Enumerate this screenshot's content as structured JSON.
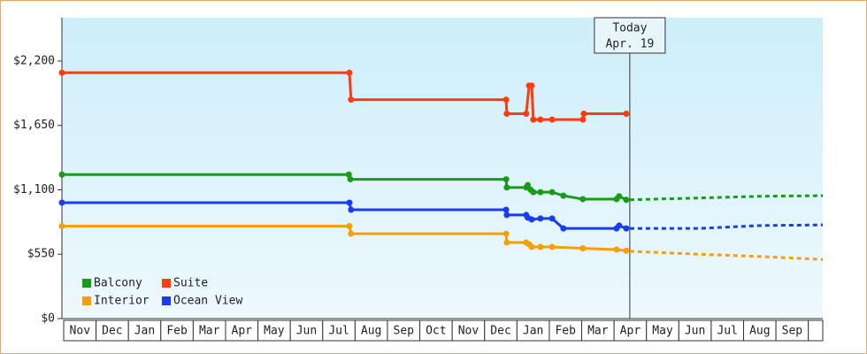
{
  "chart_data": {
    "type": "line",
    "categories": [
      "Nov",
      "Dec",
      "Jan",
      "Feb",
      "Mar",
      "Apr",
      "May",
      "Jun",
      "Jul",
      "Aug",
      "Sep",
      "Oct",
      "Nov",
      "Dec",
      "Jan",
      "Feb",
      "Mar",
      "Apr",
      "May",
      "Jun",
      "Jul",
      "Aug",
      "Sep"
    ],
    "xlim": [
      0,
      23.5
    ],
    "ylim": [
      0,
      2570
    ],
    "yticks": [
      {
        "value": 0,
        "label": "$0"
      },
      {
        "value": 550,
        "label": "$550"
      },
      {
        "value": 1100,
        "label": "$1,100"
      },
      {
        "value": 1650,
        "label": "$1,650"
      },
      {
        "value": 2200,
        "label": "$2,200"
      }
    ],
    "annotation": {
      "lines": [
        "Today",
        "Apr. 19"
      ],
      "x": 17.54
    },
    "legend": "lower left",
    "series": [
      {
        "name": "Balcony",
        "color": "#1a9a1a",
        "x": [
          0,
          8.86,
          8.91,
          13.72,
          13.74,
          14.34,
          14.39,
          14.48,
          14.56,
          14.78,
          15.14,
          15.49,
          16.09,
          17.13,
          17.21,
          17.43
        ],
        "values": [
          1230,
          1230,
          1190,
          1190,
          1120,
          1120,
          1140,
          1100,
          1080,
          1080,
          1080,
          1050,
          1020,
          1020,
          1045,
          1015
        ],
        "forecast": {
          "x": [
            17.54,
            19.67,
            21.58,
            23.5
          ],
          "values": [
            1015,
            1030,
            1045,
            1050
          ]
        }
      },
      {
        "name": "Suite",
        "color": "#ff3c10",
        "x": [
          0,
          8.88,
          8.93,
          13.72,
          13.74,
          14.34,
          14.43,
          14.51,
          14.56,
          14.78,
          15.14,
          16.09,
          16.12,
          17.43
        ],
        "values": [
          2100,
          2100,
          1870,
          1870,
          1750,
          1750,
          1990,
          1990,
          1700,
          1700,
          1700,
          1700,
          1750,
          1750
        ]
      },
      {
        "name": "Interior",
        "color": "#f5a00a",
        "x": [
          0,
          8.88,
          8.93,
          13.72,
          13.74,
          14.34,
          14.43,
          14.51,
          14.78,
          15.14,
          16.09,
          17.13,
          17.43
        ],
        "values": [
          790,
          790,
          725,
          725,
          650,
          650,
          635,
          612,
          612,
          612,
          600,
          590,
          580
        ],
        "forecast": {
          "x": [
            17.54,
            19.67,
            21.58,
            23.5
          ],
          "values": [
            575,
            550,
            530,
            505
          ]
        }
      },
      {
        "name": "Ocean View",
        "color": "#1a3cf0",
        "x": [
          0,
          8.88,
          8.93,
          13.72,
          13.74,
          14.34,
          14.39,
          14.51,
          14.78,
          15.14,
          15.49,
          17.13,
          17.21,
          17.43
        ],
        "values": [
          990,
          990,
          930,
          930,
          885,
          885,
          862,
          847,
          855,
          855,
          770,
          770,
          795,
          770
        ],
        "forecast": {
          "x": [
            17.54,
            19.67,
            21.58,
            23.5
          ],
          "values": [
            770,
            770,
            795,
            800
          ]
        }
      }
    ]
  }
}
